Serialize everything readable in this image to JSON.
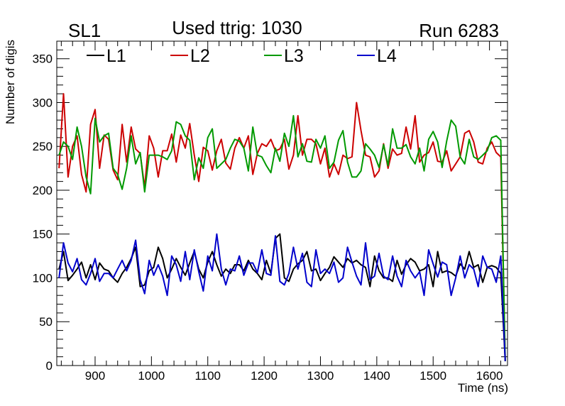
{
  "chart_data": {
    "type": "line",
    "title": "Used ttrig: 1030",
    "left_label": "SL1",
    "right_label": "Run 6283",
    "xlabel": "Time (ns)",
    "ylabel": "Number of digis",
    "xlim": [
      832,
      1632
    ],
    "ylim": [
      0,
      370
    ],
    "x_ticks": [
      900,
      1000,
      1100,
      1200,
      1300,
      1400,
      1500,
      1600
    ],
    "x_tick_labels": [
      "900",
      "1000",
      "1100",
      "1200",
      "1300",
      "1400",
      "1500",
      "1600"
    ],
    "y_ticks": [
      0,
      50,
      100,
      150,
      200,
      250,
      300,
      350
    ],
    "y_tick_labels": [
      "0",
      "50",
      "100",
      "150",
      "200",
      "250",
      "300",
      "350"
    ],
    "grid": false,
    "legend_position": "top",
    "x": [
      836,
      844,
      852,
      860,
      868,
      876,
      884,
      892,
      900,
      908,
      916,
      924,
      932,
      940,
      948,
      956,
      964,
      972,
      980,
      988,
      996,
      1004,
      1012,
      1020,
      1028,
      1036,
      1044,
      1052,
      1060,
      1068,
      1076,
      1084,
      1092,
      1100,
      1108,
      1116,
      1124,
      1132,
      1140,
      1148,
      1156,
      1164,
      1172,
      1180,
      1188,
      1196,
      1204,
      1212,
      1220,
      1228,
      1236,
      1244,
      1252,
      1260,
      1268,
      1276,
      1284,
      1292,
      1300,
      1308,
      1316,
      1324,
      1332,
      1340,
      1348,
      1356,
      1364,
      1372,
      1380,
      1388,
      1396,
      1404,
      1412,
      1420,
      1428,
      1436,
      1444,
      1452,
      1460,
      1468,
      1476,
      1484,
      1492,
      1500,
      1508,
      1516,
      1524,
      1532,
      1540,
      1548,
      1556,
      1564,
      1572,
      1580,
      1588,
      1596,
      1604,
      1612,
      1620,
      1628
    ],
    "series": [
      {
        "name": "L1",
        "color": "#000000",
        "values": [
          110,
          130,
          97,
          103,
          110,
          118,
          100,
          115,
          98,
          117,
          110,
          108,
          100,
          95,
          105,
          112,
          122,
          135,
          90,
          92,
          108,
          112,
          135,
          122,
          100,
          110,
          122,
          112,
          103,
          117,
          130,
          110,
          100,
          118,
          130,
          115,
          102,
          110,
          105,
          115,
          115,
          108,
          120,
          110,
          105,
          98,
          120,
          105,
          145,
          150,
          100,
          96,
          110,
          116,
          120,
          130,
          108,
          110,
          97,
          105,
          112,
          124,
          118,
          112,
          122,
          117,
          120,
          115,
          112,
          90,
          125,
          108,
          100,
          100,
          96,
          120,
          104,
          115,
          122,
          118,
          108,
          110,
          115,
          90,
          130,
          106,
          108,
          106,
          102,
          116,
          110,
          130,
          112,
          115,
          95,
          112,
          114,
          112,
          105,
          5
        ]
      },
      {
        "name": "L2",
        "color": "#cc0000",
        "values": [
          225,
          310,
          215,
          250,
          262,
          218,
          198,
          275,
          292,
          225,
          263,
          258,
          223,
          212,
          275,
          232,
          272,
          247,
          242,
          203,
          262,
          248,
          215,
          245,
          245,
          264,
          232,
          263,
          248,
          276,
          240,
          210,
          249,
          245,
          223,
          245,
          258,
          231,
          224,
          248,
          260,
          248,
          262,
          218,
          242,
          253,
          250,
          258,
          245,
          247,
          258,
          224,
          240,
          285,
          240,
          258,
          258,
          253,
          230,
          248,
          215,
          230,
          218,
          240,
          236,
          238,
          300,
          268,
          240,
          238,
          215,
          222,
          253,
          225,
          247,
          240,
          242,
          272,
          247,
          285,
          232,
          240,
          243,
          255,
          233,
          232,
          245,
          222,
          230,
          238,
          265,
          268,
          255,
          232,
          230,
          248,
          255,
          243,
          238,
          5
        ]
      },
      {
        "name": "L3",
        "color": "#009900",
        "values": [
          240,
          255,
          250,
          235,
          272,
          250,
          215,
          196,
          282,
          255,
          262,
          265,
          225,
          218,
          201,
          225,
          262,
          230,
          243,
          198,
          240,
          240,
          240,
          238,
          235,
          245,
          278,
          275,
          262,
          257,
          212,
          237,
          225,
          260,
          270,
          225,
          230,
          235,
          248,
          258,
          256,
          248,
          222,
          272,
          240,
          238,
          228,
          220,
          248,
          233,
          265,
          250,
          285,
          238,
          253,
          233,
          232,
          258,
          248,
          262,
          225,
          232,
          257,
          268,
          232,
          215,
          215,
          222,
          253,
          247,
          240,
          226,
          252,
          228,
          270,
          248,
          248,
          252,
          238,
          230,
          248,
          222,
          258,
          267,
          255,
          226,
          256,
          280,
          273,
          238,
          230,
          258,
          238,
          235,
          240,
          245,
          260,
          262,
          257,
          5
        ]
      },
      {
        "name": "L4",
        "color": "#0000cc",
        "values": [
          100,
          140,
          117,
          107,
          122,
          98,
          92,
          105,
          122,
          96,
          105,
          105,
          100,
          110,
          120,
          108,
          120,
          143,
          98,
          82,
          120,
          103,
          115,
          102,
          80,
          125,
          115,
          96,
          130,
          98,
          132,
          107,
          85,
          125,
          108,
          150,
          110,
          92,
          110,
          108,
          125,
          103,
          117,
          117,
          106,
          132,
          105,
          103,
          148,
          96,
          92,
          105,
          135,
          110,
          128,
          95,
          90,
          132,
          105,
          110,
          105,
          118,
          95,
          100,
          135,
          118,
          102,
          92,
          140,
          98,
          102,
          128,
          102,
          98,
          125,
          102,
          90,
          120,
          108,
          100,
          107,
          80,
          132,
          116,
          101,
          118,
          115,
          80,
          100,
          125,
          100,
          115,
          110,
          90,
          125,
          112,
          110,
          95,
          125,
          5
        ]
      }
    ]
  }
}
